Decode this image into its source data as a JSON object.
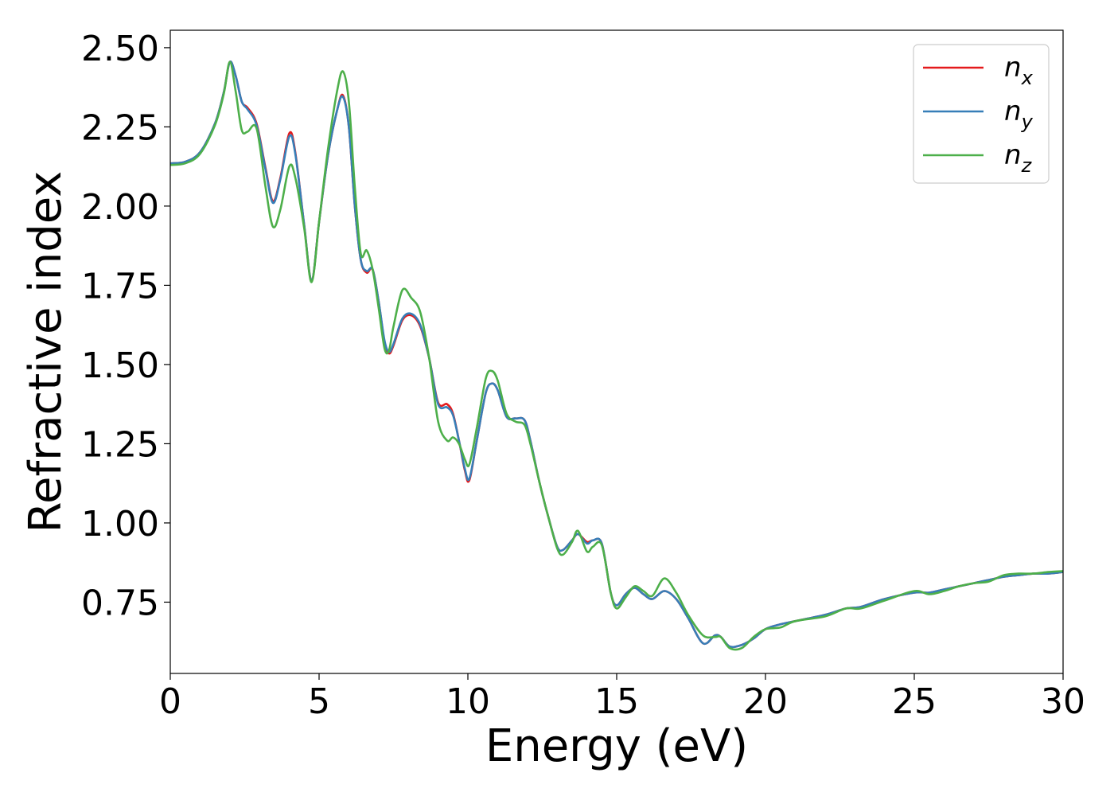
{
  "chart_data": {
    "type": "line",
    "title": "",
    "xlabel": "Energy (eV)",
    "ylabel": "Refractive index",
    "xlim": [
      0,
      30
    ],
    "ylim": [
      0.525,
      2.555
    ],
    "xticks": [
      0,
      5,
      10,
      15,
      20,
      25,
      30
    ],
    "xtick_labels": [
      "0",
      "5",
      "10",
      "15",
      "20",
      "25",
      "30"
    ],
    "yticks": [
      0.75,
      1.0,
      1.25,
      1.5,
      1.75,
      2.0,
      2.25,
      2.5
    ],
    "ytick_labels": [
      "0.75",
      "1.00",
      "1.25",
      "1.50",
      "1.75",
      "2.00",
      "2.25",
      "2.50"
    ],
    "grid": false,
    "legend_position": "top-right",
    "series": [
      {
        "name": "n",
        "subscript": "x",
        "color": "#e41a1c",
        "x": [
          0,
          0.5,
          1.0,
          1.5,
          1.8,
          2.0,
          2.2,
          2.4,
          2.6,
          2.9,
          3.2,
          3.45,
          3.7,
          4.0,
          4.2,
          4.5,
          4.75,
          5.0,
          5.3,
          5.6,
          5.8,
          6.0,
          6.2,
          6.4,
          6.6,
          6.8,
          7.0,
          7.2,
          7.35,
          7.5,
          7.8,
          8.1,
          8.4,
          8.7,
          9.0,
          9.3,
          9.5,
          9.7,
          9.9,
          10.05,
          10.3,
          10.6,
          10.8,
          11.0,
          11.3,
          11.6,
          11.9,
          12.1,
          12.4,
          12.7,
          13.0,
          13.2,
          13.5,
          13.7,
          14.0,
          14.2,
          14.5,
          14.8,
          15.0,
          15.3,
          15.6,
          15.9,
          16.2,
          16.6,
          17.0,
          17.4,
          17.9,
          18.3,
          18.5,
          18.8,
          19.2,
          19.6,
          20.0,
          20.5,
          21.0,
          22.0,
          22.7,
          23.2,
          24.0,
          25.0,
          25.5,
          26.0,
          26.5,
          27.0,
          27.5,
          28.0,
          28.5,
          29.0,
          29.5,
          30.0
        ],
        "y": [
          2.135,
          2.14,
          2.17,
          2.26,
          2.36,
          2.455,
          2.41,
          2.33,
          2.31,
          2.26,
          2.12,
          2.015,
          2.09,
          2.23,
          2.17,
          1.94,
          1.765,
          1.95,
          2.16,
          2.3,
          2.35,
          2.25,
          2.0,
          1.83,
          1.79,
          1.8,
          1.7,
          1.57,
          1.535,
          1.56,
          1.64,
          1.655,
          1.62,
          1.52,
          1.38,
          1.375,
          1.345,
          1.26,
          1.165,
          1.135,
          1.26,
          1.41,
          1.44,
          1.42,
          1.335,
          1.33,
          1.325,
          1.26,
          1.13,
          1.02,
          0.925,
          0.915,
          0.945,
          0.965,
          0.94,
          0.945,
          0.935,
          0.78,
          0.74,
          0.775,
          0.795,
          0.775,
          0.76,
          0.785,
          0.76,
          0.7,
          0.62,
          0.645,
          0.64,
          0.61,
          0.615,
          0.635,
          0.665,
          0.68,
          0.69,
          0.71,
          0.73,
          0.735,
          0.76,
          0.78,
          0.78,
          0.79,
          0.8,
          0.81,
          0.82,
          0.83,
          0.835,
          0.84,
          0.84,
          0.845
        ]
      },
      {
        "name": "n",
        "subscript": "y",
        "color": "#377eb8",
        "x": [
          0,
          0.5,
          1.0,
          1.5,
          1.8,
          2.0,
          2.2,
          2.4,
          2.6,
          2.9,
          3.2,
          3.45,
          3.7,
          4.0,
          4.2,
          4.5,
          4.75,
          5.0,
          5.3,
          5.6,
          5.8,
          6.0,
          6.2,
          6.4,
          6.6,
          6.8,
          7.0,
          7.2,
          7.35,
          7.5,
          7.8,
          8.1,
          8.4,
          8.7,
          9.0,
          9.3,
          9.5,
          9.7,
          9.9,
          10.05,
          10.3,
          10.6,
          10.8,
          11.0,
          11.3,
          11.6,
          11.9,
          12.1,
          12.4,
          12.7,
          13.0,
          13.2,
          13.5,
          13.7,
          14.0,
          14.2,
          14.5,
          14.8,
          15.0,
          15.3,
          15.6,
          15.9,
          16.2,
          16.6,
          17.0,
          17.4,
          17.9,
          18.3,
          18.5,
          18.8,
          19.2,
          19.6,
          20.0,
          20.5,
          21.0,
          22.0,
          22.7,
          23.2,
          24.0,
          25.0,
          25.5,
          26.0,
          26.5,
          27.0,
          27.5,
          28.0,
          28.5,
          29.0,
          29.5,
          30.0
        ],
        "y": [
          2.135,
          2.14,
          2.17,
          2.26,
          2.36,
          2.455,
          2.41,
          2.33,
          2.305,
          2.255,
          2.115,
          2.01,
          2.085,
          2.22,
          2.165,
          1.94,
          1.765,
          1.95,
          2.16,
          2.3,
          2.345,
          2.25,
          2.0,
          1.83,
          1.795,
          1.8,
          1.7,
          1.575,
          1.54,
          1.565,
          1.645,
          1.66,
          1.625,
          1.52,
          1.375,
          1.365,
          1.34,
          1.26,
          1.17,
          1.14,
          1.26,
          1.41,
          1.44,
          1.42,
          1.335,
          1.33,
          1.325,
          1.26,
          1.13,
          1.02,
          0.925,
          0.915,
          0.945,
          0.965,
          0.935,
          0.945,
          0.935,
          0.78,
          0.74,
          0.775,
          0.795,
          0.775,
          0.76,
          0.785,
          0.76,
          0.7,
          0.62,
          0.645,
          0.64,
          0.61,
          0.615,
          0.635,
          0.665,
          0.68,
          0.69,
          0.71,
          0.73,
          0.735,
          0.76,
          0.78,
          0.78,
          0.79,
          0.8,
          0.81,
          0.82,
          0.83,
          0.835,
          0.84,
          0.84,
          0.845
        ]
      },
      {
        "name": "n",
        "subscript": "z",
        "color": "#4daf4a",
        "x": [
          0,
          0.5,
          1.0,
          1.5,
          1.8,
          2.0,
          2.2,
          2.4,
          2.6,
          2.9,
          3.2,
          3.45,
          3.7,
          4.0,
          4.2,
          4.5,
          4.75,
          5.0,
          5.3,
          5.6,
          5.8,
          6.0,
          6.2,
          6.4,
          6.6,
          6.8,
          7.0,
          7.2,
          7.35,
          7.5,
          7.8,
          8.1,
          8.4,
          8.7,
          9.0,
          9.3,
          9.5,
          9.7,
          9.9,
          10.05,
          10.3,
          10.6,
          10.8,
          11.0,
          11.3,
          11.6,
          11.9,
          12.1,
          12.4,
          12.7,
          13.0,
          13.2,
          13.5,
          13.7,
          14.0,
          14.2,
          14.5,
          14.8,
          15.0,
          15.3,
          15.6,
          15.9,
          16.2,
          16.6,
          17.0,
          17.4,
          17.9,
          18.3,
          18.5,
          18.8,
          19.2,
          19.6,
          20.0,
          20.5,
          21.0,
          22.0,
          22.7,
          23.2,
          24.0,
          25.0,
          25.5,
          26.0,
          26.5,
          27.0,
          27.5,
          28.0,
          28.5,
          29.0,
          29.5,
          30.0
        ],
        "y": [
          2.13,
          2.135,
          2.165,
          2.255,
          2.355,
          2.455,
          2.36,
          2.24,
          2.235,
          2.245,
          2.06,
          1.935,
          1.99,
          2.125,
          2.09,
          1.93,
          1.76,
          1.95,
          2.18,
          2.36,
          2.425,
          2.33,
          2.06,
          1.85,
          1.86,
          1.8,
          1.68,
          1.55,
          1.545,
          1.62,
          1.735,
          1.71,
          1.665,
          1.52,
          1.32,
          1.26,
          1.27,
          1.25,
          1.2,
          1.185,
          1.3,
          1.455,
          1.48,
          1.45,
          1.345,
          1.32,
          1.31,
          1.25,
          1.13,
          1.02,
          0.92,
          0.9,
          0.94,
          0.975,
          0.91,
          0.925,
          0.93,
          0.78,
          0.73,
          0.765,
          0.8,
          0.785,
          0.77,
          0.825,
          0.78,
          0.71,
          0.645,
          0.64,
          0.64,
          0.605,
          0.605,
          0.64,
          0.665,
          0.67,
          0.69,
          0.705,
          0.73,
          0.73,
          0.755,
          0.785,
          0.775,
          0.785,
          0.8,
          0.81,
          0.815,
          0.835,
          0.84,
          0.84,
          0.845,
          0.848
        ]
      }
    ]
  }
}
